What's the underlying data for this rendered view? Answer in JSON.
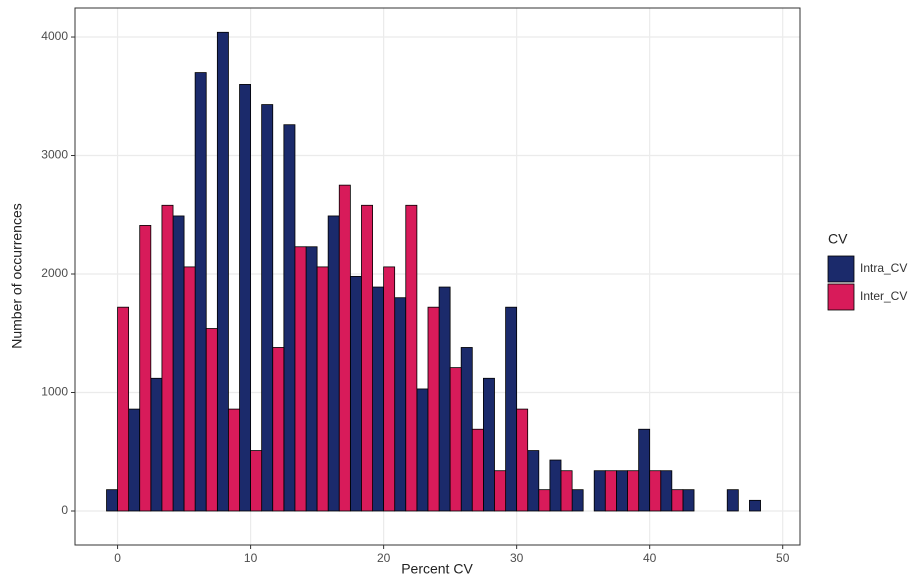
{
  "chart_data": {
    "type": "histogram",
    "x_label": "Percent CV",
    "y_label": "Number of occurrences",
    "legend_title": "CV",
    "legend_position": "right",
    "grid": true,
    "bins": [
      -0.83,
      0.83,
      2.5,
      4.17,
      5.83,
      7.5,
      9.17,
      10.83,
      12.5,
      14.17,
      15.83,
      17.5,
      19.17,
      20.83,
      22.5,
      24.17,
      25.83,
      27.5,
      29.17,
      30.83,
      32.5,
      34.17,
      35.83,
      37.5,
      39.17,
      40.83,
      42.5,
      44.17,
      45.83,
      47.5,
      49.17
    ],
    "series": [
      {
        "name": "Intra_CV",
        "color": "#1b2a6b",
        "values": [
          180,
          860,
          1120,
          2490,
          3700,
          4040,
          3600,
          3430,
          3260,
          2230,
          2490,
          1980,
          1890,
          1800,
          1030,
          1890,
          1380,
          1120,
          1720,
          510,
          430,
          180,
          340,
          340,
          690,
          340,
          180,
          0,
          180,
          90
        ]
      },
      {
        "name": "Inter_CV",
        "color": "#d81b5a",
        "values": [
          1720,
          2410,
          2580,
          2060,
          1540,
          860,
          510,
          1380,
          2230,
          2060,
          2750,
          2580,
          2060,
          2580,
          1720,
          1210,
          690,
          340,
          860,
          180,
          340,
          0,
          340,
          340,
          340,
          180,
          0,
          0,
          0,
          0
        ]
      }
    ],
    "xlim": [
      -3.2,
      51.3
    ],
    "xticks": [
      0,
      10,
      20,
      30,
      40,
      50
    ],
    "ylim": [
      -287,
      4245
    ],
    "yticks": [
      0,
      1000,
      2000,
      3000,
      4000
    ]
  }
}
